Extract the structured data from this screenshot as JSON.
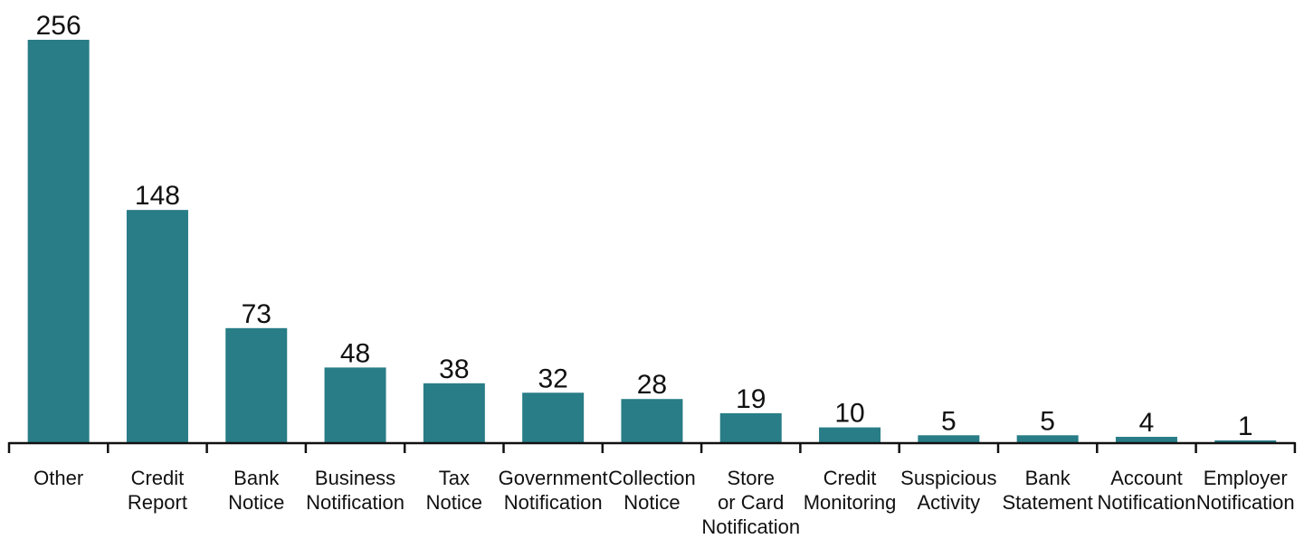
{
  "chart_data": {
    "type": "bar",
    "categories": [
      [
        "Other"
      ],
      [
        "Credit",
        "Report"
      ],
      [
        "Bank",
        "Notice"
      ],
      [
        "Business",
        "Notification"
      ],
      [
        "Tax",
        "Notice"
      ],
      [
        "Government",
        "Notification"
      ],
      [
        "Collection",
        "Notice"
      ],
      [
        "Store",
        "or Card",
        "Notification"
      ],
      [
        "Credit",
        "Monitoring"
      ],
      [
        "Suspicious",
        "Activity"
      ],
      [
        "Bank",
        "Statement"
      ],
      [
        "Account",
        "Notification"
      ],
      [
        "Employer",
        "Notification"
      ]
    ],
    "values": [
      256,
      148,
      73,
      48,
      38,
      32,
      28,
      19,
      10,
      5,
      5,
      4,
      1
    ],
    "title": "",
    "xlabel": "",
    "ylabel": "",
    "ylim": [
      0,
      256
    ],
    "grid": false,
    "data_labels": true,
    "bar_color": "#287d87",
    "axis_color": "#111111"
  }
}
